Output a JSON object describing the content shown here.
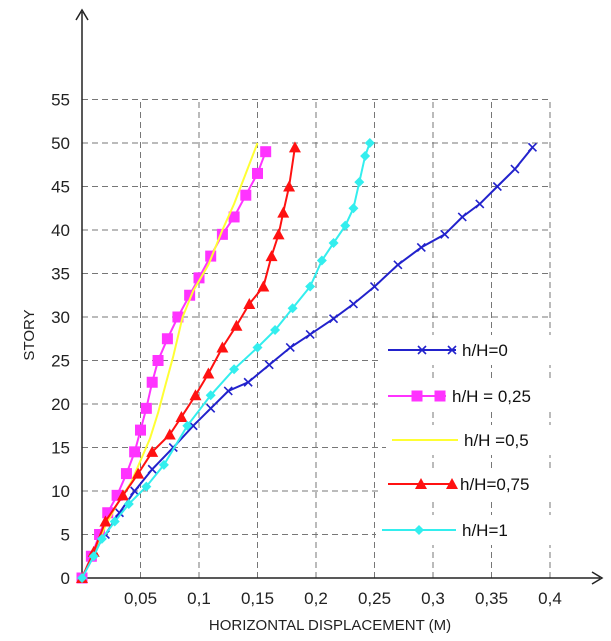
{
  "chart_data": {
    "type": "line",
    "title": "",
    "xlabel": "HORIZONTAL DISPLACEMENT (M)",
    "ylabel": "STORY",
    "xlim": [
      0,
      0.4
    ],
    "ylim": [
      0,
      55
    ],
    "x_ticks": [
      "0,05",
      "0,1",
      "0,15",
      "0,2",
      "0,25",
      "0,3",
      "0,35",
      "0,4"
    ],
    "y_ticks": [
      "0",
      "5",
      "10",
      "15",
      "20",
      "25",
      "30",
      "35",
      "40",
      "45",
      "50",
      "55"
    ],
    "grid": true,
    "legend_position": "right",
    "series": [
      {
        "name": "h/H=0",
        "color": "#2222cc",
        "marker": "x",
        "points": [
          [
            0.0,
            0
          ],
          [
            0.008,
            2.5
          ],
          [
            0.02,
            5
          ],
          [
            0.032,
            7.5
          ],
          [
            0.045,
            10
          ],
          [
            0.06,
            12.5
          ],
          [
            0.078,
            15
          ],
          [
            0.095,
            17.5
          ],
          [
            0.11,
            19.5
          ],
          [
            0.125,
            21.5
          ],
          [
            0.142,
            22.5
          ],
          [
            0.16,
            24.5
          ],
          [
            0.178,
            26.5
          ],
          [
            0.195,
            28
          ],
          [
            0.215,
            29.8
          ],
          [
            0.232,
            31.5
          ],
          [
            0.25,
            33.5
          ],
          [
            0.27,
            36
          ],
          [
            0.29,
            38
          ],
          [
            0.31,
            39.5
          ],
          [
            0.325,
            41.5
          ],
          [
            0.34,
            43
          ],
          [
            0.355,
            45
          ],
          [
            0.37,
            47
          ],
          [
            0.385,
            49.5
          ]
        ]
      },
      {
        "name": "h/H = 0,25",
        "color": "#ff33ff",
        "marker": "square",
        "points": [
          [
            0.0,
            0
          ],
          [
            0.008,
            2.5
          ],
          [
            0.015,
            5
          ],
          [
            0.022,
            7.5
          ],
          [
            0.03,
            9.5
          ],
          [
            0.038,
            12
          ],
          [
            0.045,
            14.5
          ],
          [
            0.05,
            17
          ],
          [
            0.055,
            19.5
          ],
          [
            0.06,
            22.5
          ],
          [
            0.065,
            25
          ],
          [
            0.073,
            27.5
          ],
          [
            0.082,
            30
          ],
          [
            0.092,
            32.5
          ],
          [
            0.1,
            34.5
          ],
          [
            0.11,
            37
          ],
          [
            0.12,
            39.5
          ],
          [
            0.13,
            41.5
          ],
          [
            0.14,
            44
          ],
          [
            0.15,
            46.5
          ],
          [
            0.157,
            49
          ]
        ]
      },
      {
        "name": "h/H =0,5",
        "color": "#ffff33",
        "marker": "none",
        "points": [
          [
            0.0,
            0
          ],
          [
            0.01,
            3
          ],
          [
            0.02,
            6
          ],
          [
            0.03,
            8.5
          ],
          [
            0.042,
            11
          ],
          [
            0.05,
            13.5
          ],
          [
            0.058,
            16
          ],
          [
            0.065,
            19
          ],
          [
            0.072,
            22.5
          ],
          [
            0.078,
            25.5
          ],
          [
            0.086,
            30
          ],
          [
            0.095,
            33
          ],
          [
            0.108,
            36
          ],
          [
            0.12,
            40
          ],
          [
            0.13,
            43
          ],
          [
            0.14,
            46.5
          ],
          [
            0.15,
            50
          ]
        ]
      },
      {
        "name": "h/H=0,75",
        "color": "#ff1111",
        "marker": "triangle",
        "points": [
          [
            0.0,
            0
          ],
          [
            0.01,
            3
          ],
          [
            0.02,
            6.5
          ],
          [
            0.035,
            9.5
          ],
          [
            0.048,
            12
          ],
          [
            0.06,
            14.5
          ],
          [
            0.075,
            16.5
          ],
          [
            0.085,
            18.5
          ],
          [
            0.097,
            21
          ],
          [
            0.108,
            23.5
          ],
          [
            0.12,
            26.5
          ],
          [
            0.132,
            29
          ],
          [
            0.143,
            31.5
          ],
          [
            0.155,
            33.5
          ],
          [
            0.162,
            37
          ],
          [
            0.168,
            39.5
          ],
          [
            0.172,
            42
          ],
          [
            0.177,
            45
          ],
          [
            0.182,
            49.5
          ]
        ]
      },
      {
        "name": "h/H=1",
        "color": "#33eeee",
        "marker": "diamond",
        "points": [
          [
            0.0,
            0
          ],
          [
            0.01,
            2.5
          ],
          [
            0.017,
            4.5
          ],
          [
            0.028,
            6.5
          ],
          [
            0.04,
            8.5
          ],
          [
            0.055,
            10.5
          ],
          [
            0.07,
            13
          ],
          [
            0.09,
            17.5
          ],
          [
            0.11,
            21
          ],
          [
            0.13,
            24
          ],
          [
            0.15,
            26.5
          ],
          [
            0.165,
            28.5
          ],
          [
            0.18,
            31
          ],
          [
            0.195,
            33.5
          ],
          [
            0.205,
            36.5
          ],
          [
            0.215,
            38.5
          ],
          [
            0.225,
            40.5
          ],
          [
            0.232,
            42.5
          ],
          [
            0.237,
            45.5
          ],
          [
            0.242,
            48.5
          ],
          [
            0.246,
            50
          ]
        ]
      }
    ]
  }
}
